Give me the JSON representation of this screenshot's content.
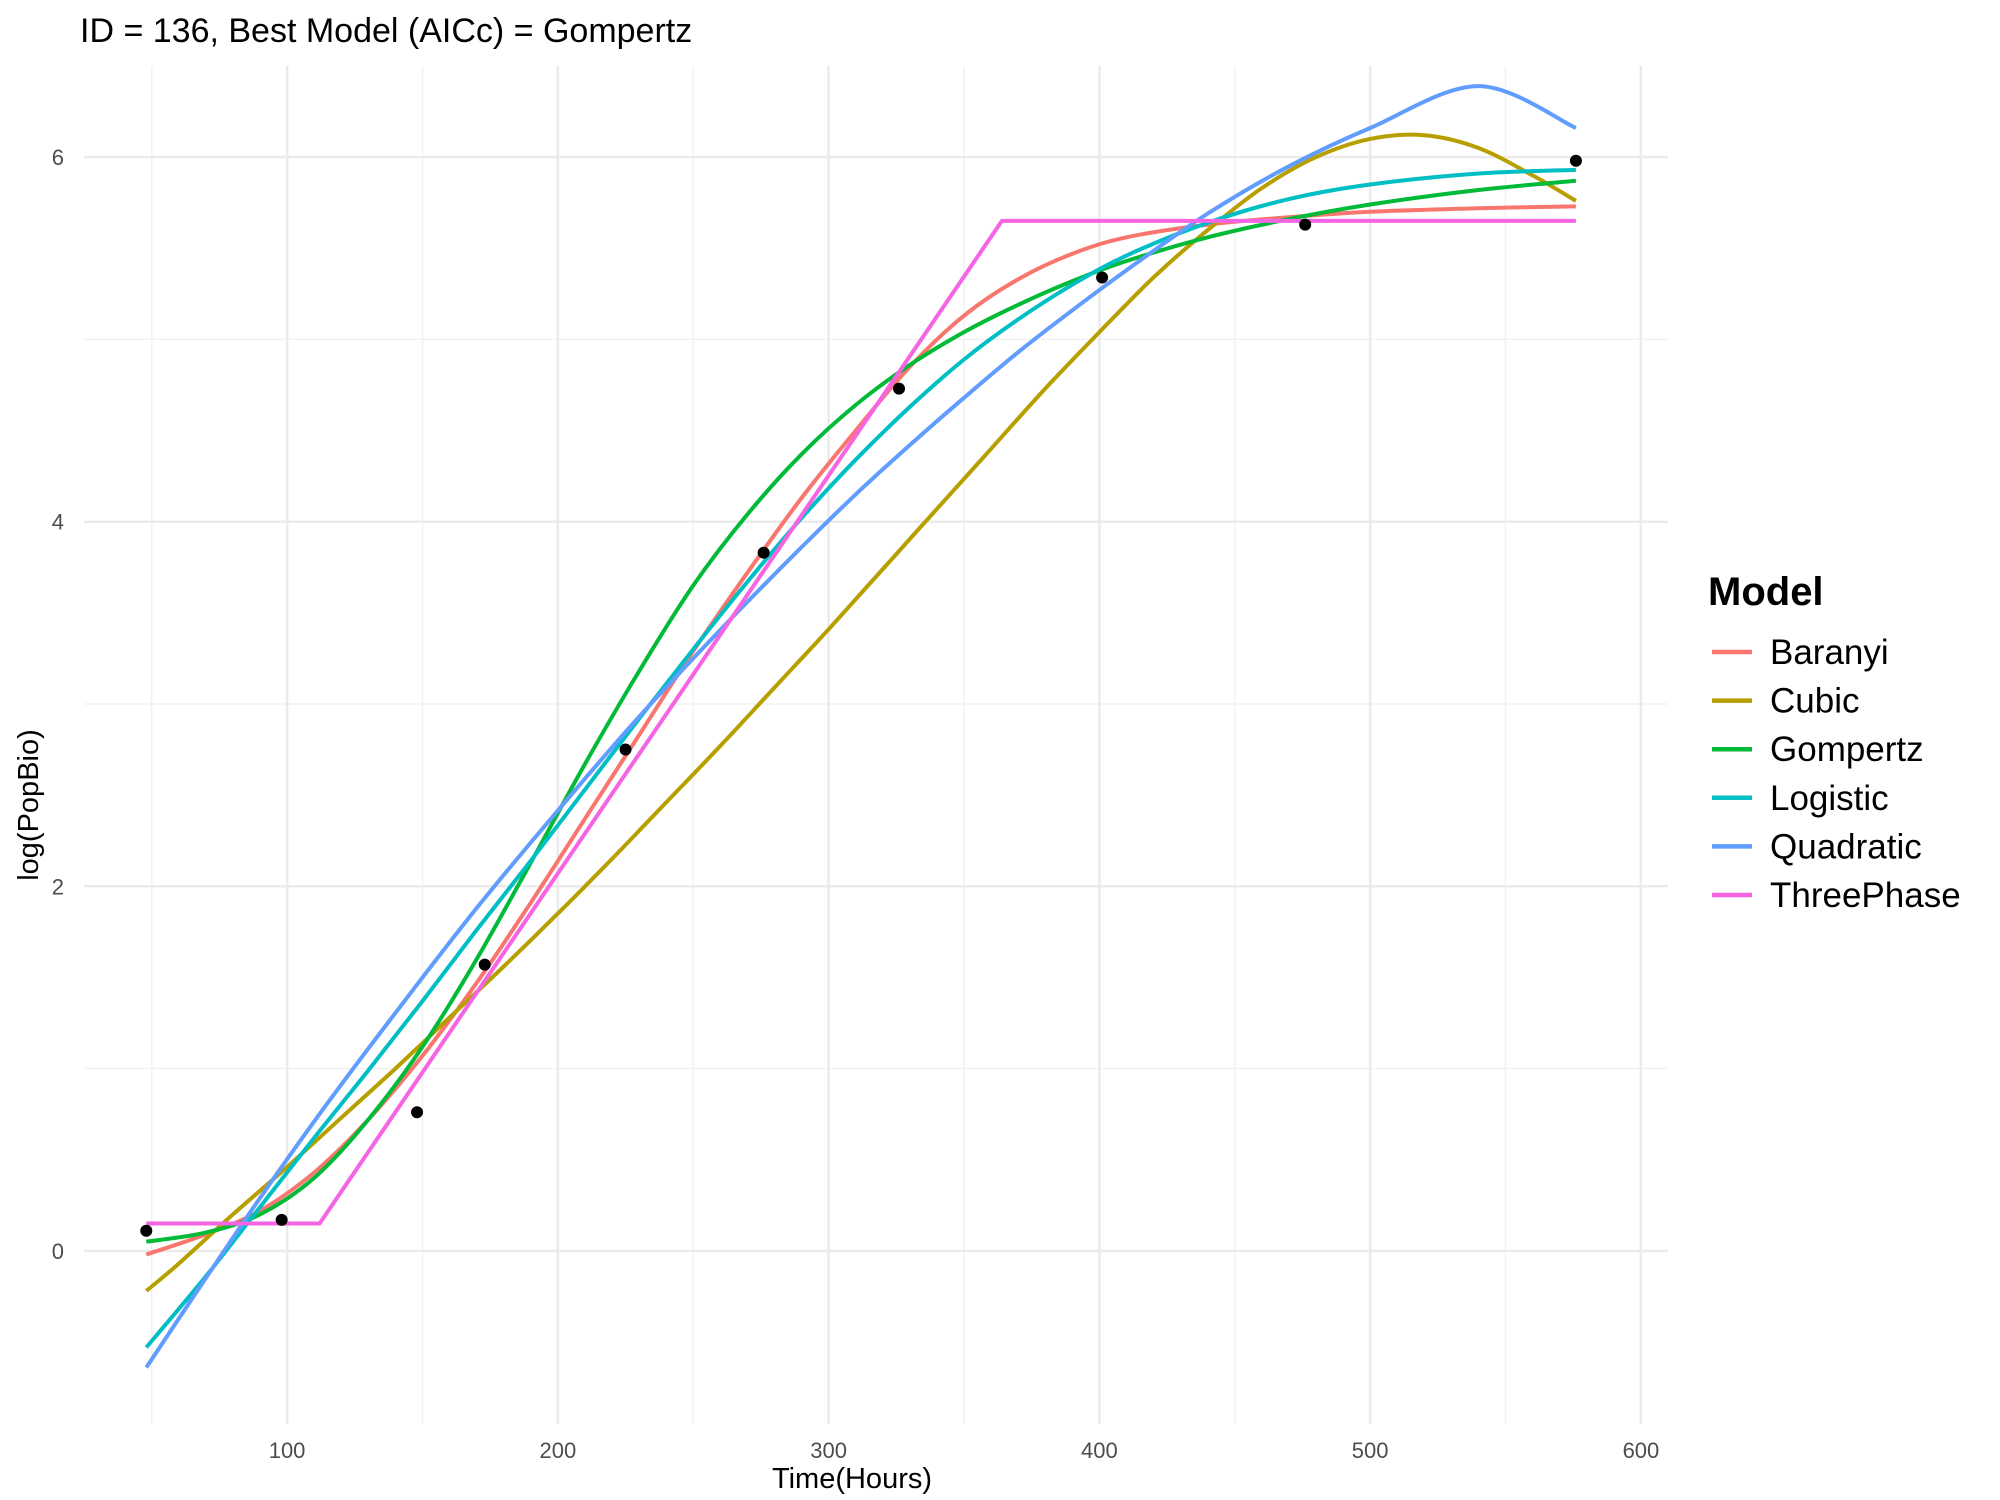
{
  "chart_data": {
    "type": "line",
    "title": "ID = 136, Best Model (AICc) = Gompertz",
    "xlabel": "Time(Hours)",
    "ylabel": "log(PopBio)",
    "xlim": [
      25,
      610
    ],
    "ylim": [
      -0.95,
      6.5
    ],
    "x_ticks": [
      100,
      200,
      300,
      400,
      500,
      600
    ],
    "y_ticks": [
      0,
      2,
      4,
      6
    ],
    "x_tick_labels": [
      "100",
      "200",
      "300",
      "400",
      "500",
      "600"
    ],
    "y_tick_labels": [
      "0",
      "2",
      "4",
      "6"
    ],
    "grid": true,
    "legend": {
      "title": "Model",
      "position": "right"
    },
    "points": {
      "color": "#000000",
      "x": [
        48,
        98,
        148,
        173,
        225,
        276,
        326,
        401,
        476,
        576
      ],
      "y": [
        0.11,
        0.17,
        0.76,
        1.57,
        2.75,
        3.83,
        4.73,
        5.34,
        5.63,
        5.98
      ]
    },
    "series": [
      {
        "name": "Baranyi",
        "color": "#F8766D",
        "x": [
          48,
          70,
          90,
          110,
          130,
          150,
          170,
          190,
          210,
          230,
          250,
          270,
          290,
          310,
          330,
          350,
          370,
          390,
          410,
          440,
          470,
          500,
          540,
          576
        ],
        "y": [
          -0.02,
          0.09,
          0.22,
          0.43,
          0.72,
          1.07,
          1.47,
          1.91,
          2.37,
          2.83,
          3.29,
          3.72,
          4.13,
          4.5,
          4.85,
          5.13,
          5.33,
          5.47,
          5.56,
          5.63,
          5.67,
          5.7,
          5.72,
          5.73
        ]
      },
      {
        "name": "Cubic",
        "color": "#B79F00",
        "x": [
          48,
          60,
          80,
          100,
          120,
          140,
          160,
          180,
          200,
          220,
          240,
          260,
          280,
          300,
          320,
          340,
          360,
          380,
          400,
          420,
          440,
          460,
          480,
          500,
          520,
          540,
          560,
          576
        ],
        "y": [
          -0.22,
          -0.07,
          0.2,
          0.46,
          0.73,
          1.0,
          1.28,
          1.56,
          1.85,
          2.15,
          2.46,
          2.77,
          3.09,
          3.41,
          3.74,
          4.07,
          4.4,
          4.73,
          5.04,
          5.34,
          5.6,
          5.83,
          6.0,
          6.1,
          6.12,
          6.05,
          5.9,
          5.76
        ]
      },
      {
        "name": "Gompertz",
        "color": "#00BA38",
        "x": [
          48,
          70,
          90,
          110,
          130,
          150,
          170,
          190,
          210,
          230,
          250,
          270,
          290,
          310,
          330,
          350,
          370,
          390,
          410,
          440,
          470,
          500,
          540,
          576
        ],
        "y": [
          0.05,
          0.1,
          0.2,
          0.4,
          0.72,
          1.12,
          1.6,
          2.13,
          2.67,
          3.18,
          3.65,
          4.04,
          4.37,
          4.64,
          4.86,
          5.04,
          5.19,
          5.32,
          5.43,
          5.56,
          5.66,
          5.74,
          5.82,
          5.87
        ]
      },
      {
        "name": "Logistic",
        "color": "#00BFC4",
        "x": [
          48,
          70,
          90,
          110,
          130,
          150,
          170,
          190,
          210,
          230,
          250,
          270,
          290,
          310,
          330,
          350,
          370,
          390,
          410,
          440,
          470,
          500,
          540,
          576
        ],
        "y": [
          -0.53,
          -0.14,
          0.24,
          0.62,
          0.99,
          1.37,
          1.76,
          2.14,
          2.53,
          2.92,
          3.3,
          3.67,
          4.02,
          4.34,
          4.63,
          4.89,
          5.11,
          5.3,
          5.46,
          5.64,
          5.77,
          5.85,
          5.91,
          5.93
        ]
      },
      {
        "name": "Quadratic",
        "color": "#619CFF",
        "x": [
          48,
          70,
          90,
          110,
          130,
          150,
          170,
          190,
          210,
          230,
          250,
          270,
          290,
          310,
          330,
          350,
          370,
          390,
          410,
          440,
          470,
          500,
          540,
          576
        ],
        "y": [
          -0.64,
          -0.15,
          0.29,
          0.71,
          1.11,
          1.5,
          1.88,
          2.24,
          2.59,
          2.93,
          3.25,
          3.56,
          3.86,
          4.15,
          4.42,
          4.68,
          4.93,
          5.16,
          5.38,
          5.69,
          5.95,
          6.16,
          6.39,
          6.16
        ]
      },
      {
        "name": "ThreePhase",
        "color": "#F564E3",
        "x": [
          48,
          112,
          364,
          576
        ],
        "y": [
          0.15,
          0.15,
          5.65,
          5.65
        ]
      }
    ]
  }
}
